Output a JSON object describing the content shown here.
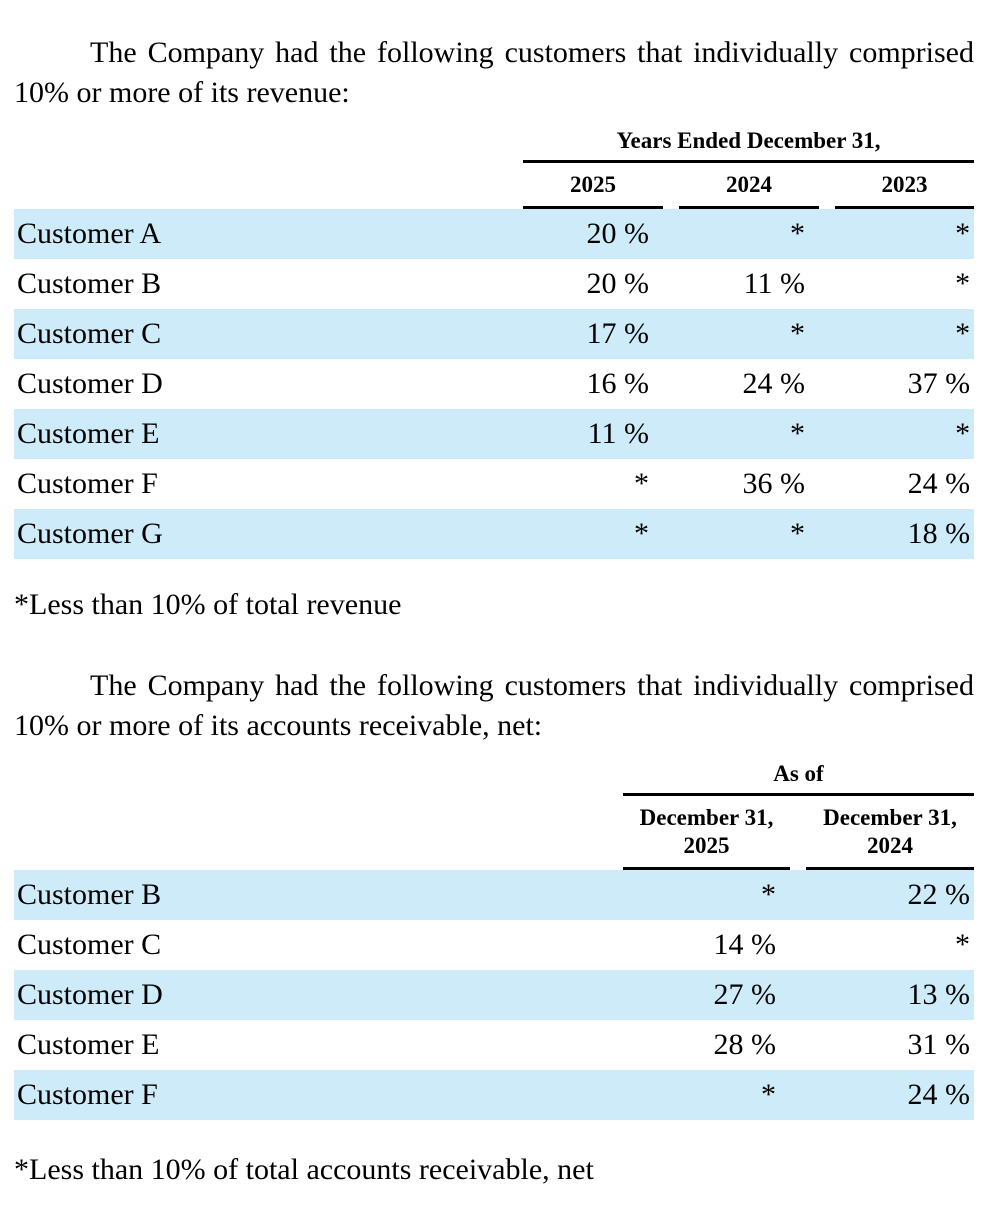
{
  "revenue_section": {
    "intro": "The Company had the following customers that individually comprised 10% or more of its revenue:",
    "group_header": "Years Ended December 31,",
    "columns": [
      "2025",
      "2024",
      "2023"
    ],
    "rows": [
      {
        "customer": "Customer A",
        "values": [
          "20 %",
          "*",
          "*"
        ]
      },
      {
        "customer": "Customer B",
        "values": [
          "20 %",
          "11 %",
          "*"
        ]
      },
      {
        "customer": "Customer C",
        "values": [
          "17 %",
          "*",
          "*"
        ]
      },
      {
        "customer": "Customer D",
        "values": [
          "16 %",
          "24 %",
          "37 %"
        ]
      },
      {
        "customer": "Customer E",
        "values": [
          "11 %",
          "*",
          "*"
        ]
      },
      {
        "customer": "Customer F",
        "values": [
          "*",
          "36 %",
          "24 %"
        ]
      },
      {
        "customer": "Customer G",
        "values": [
          "*",
          "*",
          "18 %"
        ]
      }
    ],
    "footnote": "*Less than 10% of total revenue"
  },
  "receivable_section": {
    "intro": "The Company had the following customers that individually comprised 10% or more of its accounts receivable, net:",
    "group_header": "As of",
    "columns": [
      {
        "line1": "December 31,",
        "line2": "2025"
      },
      {
        "line1": "December 31,",
        "line2": "2024"
      }
    ],
    "rows": [
      {
        "customer": "Customer B",
        "values": [
          "*",
          "22 %"
        ]
      },
      {
        "customer": "Customer C",
        "values": [
          "14 %",
          "*"
        ]
      },
      {
        "customer": "Customer D",
        "values": [
          "27 %",
          "13 %"
        ]
      },
      {
        "customer": "Customer E",
        "values": [
          "28 %",
          "31 %"
        ]
      },
      {
        "customer": "Customer F",
        "values": [
          "*",
          "24 %"
        ]
      }
    ],
    "footnote": "*Less than 10% of total accounts receivable, net"
  },
  "colors": {
    "row_shading": "#cdebf9",
    "rule": "#000000"
  }
}
